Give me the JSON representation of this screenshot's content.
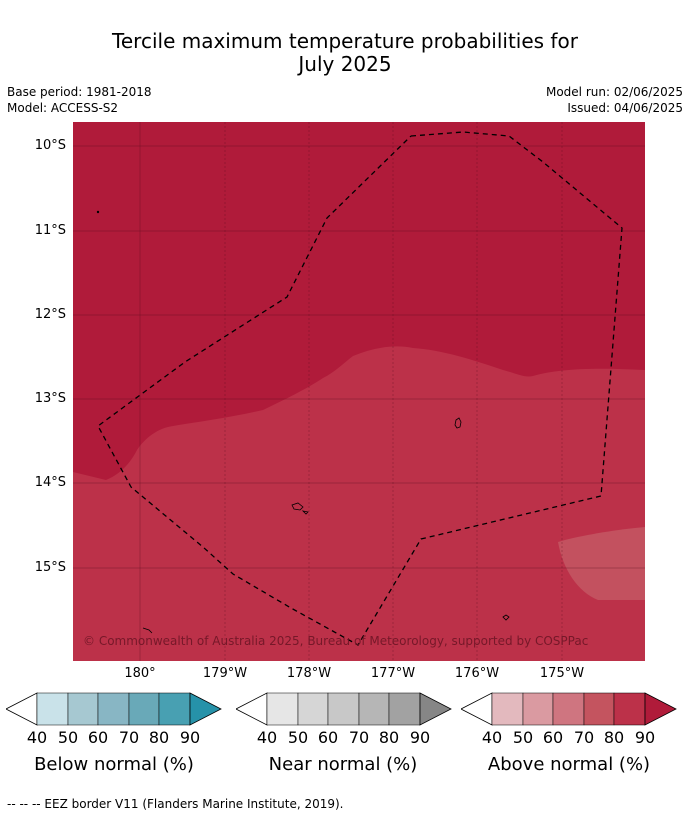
{
  "title_line1": "Tercile maximum temperature probabilities for",
  "title_line2": "July 2025",
  "meta": {
    "base_period": "Base period: 1981-2018",
    "model": "Model: ACCESS-S2",
    "model_run": "Model run: 02/06/2025",
    "issued": "Issued: 04/06/2025"
  },
  "lat_labels": [
    "10°S",
    "11°S",
    "12°S",
    "13°S",
    "14°S",
    "15°S"
  ],
  "lon_labels": [
    "180°",
    "179°W",
    "178°W",
    "177°W",
    "176°W",
    "175°W"
  ],
  "copyright": "© Commonwealth of Australia 2025, Bureau of Meteorology, supported by COSPPac",
  "colors": {
    "above_80_90": "#b01b3a",
    "above_70_80": "#bc3149",
    "above_60_70": "#c3515f",
    "eez_border": "#000000"
  },
  "colorbars": [
    {
      "label": "Below normal (%)",
      "ticks": [
        "40",
        "50",
        "60",
        "70",
        "80",
        "90"
      ],
      "colors": [
        "#ffffff",
        "#c9e2e9",
        "#a6c8d1",
        "#88b6c4",
        "#69a9b8",
        "#48a0b2",
        "#2692a9"
      ]
    },
    {
      "label": "Near normal (%)",
      "ticks": [
        "40",
        "50",
        "60",
        "70",
        "80",
        "90"
      ],
      "colors": [
        "#ffffff",
        "#e6e6e6",
        "#d6d6d6",
        "#c8c8c8",
        "#b6b6b6",
        "#a2a2a2",
        "#868686"
      ]
    },
    {
      "label": "Above normal (%)",
      "ticks": [
        "40",
        "50",
        "60",
        "70",
        "80",
        "90"
      ],
      "colors": [
        "#ffffff",
        "#e3b9be",
        "#da9aa1",
        "#cf7580",
        "#c4545f",
        "#bc3149",
        "#b01b3a"
      ]
    }
  ],
  "footnote": "--  --  -- EEZ border V11 (Flanders Marine Institute, 2019)."
}
